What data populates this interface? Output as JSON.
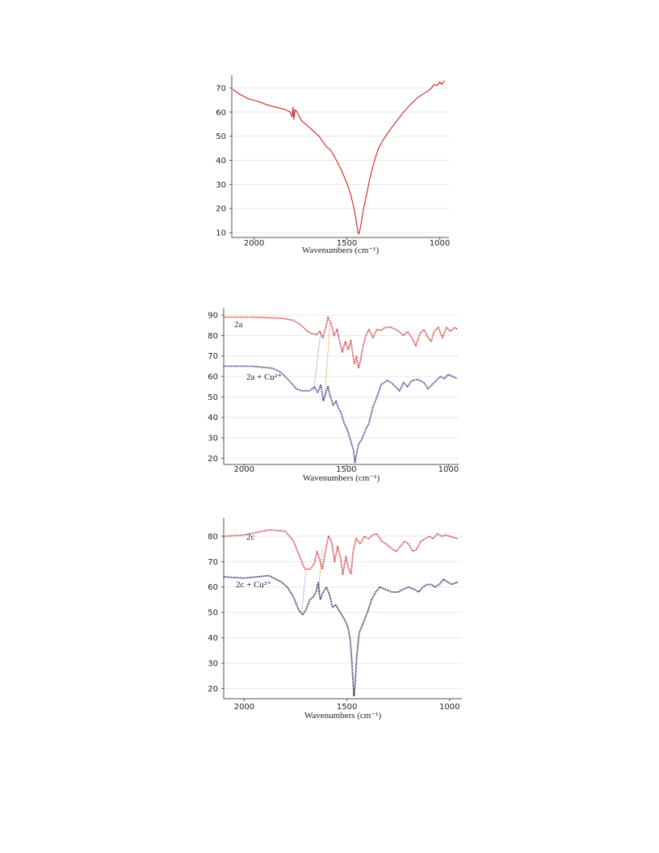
{
  "chart_data": [
    {
      "type": "line",
      "xlabel": "Wavenumbers (cm⁻¹)",
      "ylabel": "",
      "xlim": [
        2120,
        950
      ],
      "ylim": [
        8,
        74
      ],
      "xticks": [
        2000,
        1500,
        1000
      ],
      "yticks": [
        10,
        20,
        30,
        40,
        50,
        60,
        70
      ],
      "grid": true,
      "series": [
        {
          "color": "#cc2222",
          "points": [
            [
              2115,
              69.5
            ],
            [
              2080,
              67.5
            ],
            [
              2030,
              65.5
            ],
            [
              1980,
              64.5
            ],
            [
              1930,
              63
            ],
            [
              1880,
              62
            ],
            [
              1830,
              61
            ],
            [
              1805,
              60
            ],
            [
              1795,
              58
            ],
            [
              1790,
              62
            ],
            [
              1786,
              57
            ],
            [
              1780,
              61
            ],
            [
              1768,
              60
            ],
            [
              1745,
              56.5
            ],
            [
              1715,
              54.5
            ],
            [
              1685,
              52.5
            ],
            [
              1650,
              50
            ],
            [
              1610,
              45.5
            ],
            [
              1590,
              44.5
            ],
            [
              1560,
              40.5
            ],
            [
              1530,
              36
            ],
            [
              1500,
              30.5
            ],
            [
              1480,
              26
            ],
            [
              1460,
              19.5
            ],
            [
              1448,
              14
            ],
            [
              1440,
              10
            ],
            [
              1435,
              9.5
            ],
            [
              1425,
              13
            ],
            [
              1410,
              20
            ],
            [
              1395,
              25.5
            ],
            [
              1375,
              33
            ],
            [
              1355,
              39
            ],
            [
              1330,
              45
            ],
            [
              1300,
              49
            ],
            [
              1265,
              53
            ],
            [
              1235,
              56
            ],
            [
              1200,
              59.5
            ],
            [
              1160,
              63
            ],
            [
              1120,
              66
            ],
            [
              1080,
              68
            ],
            [
              1050,
              69.5
            ],
            [
              1030,
              71.5
            ],
            [
              1015,
              71
            ],
            [
              1000,
              72.5
            ],
            [
              990,
              71.5
            ],
            [
              975,
              73
            ]
          ]
        }
      ]
    },
    {
      "type": "line",
      "xlabel": "Wavenumbers (cm⁻¹)",
      "ylabel": "",
      "xlim": [
        2100,
        950
      ],
      "ylim": [
        17,
        92
      ],
      "xticks": [
        2000,
        1500,
        1000
      ],
      "yticks": [
        20,
        30,
        40,
        50,
        60,
        70,
        80,
        90
      ],
      "grid": true,
      "series": [
        {
          "name": "2a",
          "color": "#cc3333",
          "points": [
            [
              2100,
              89
            ],
            [
              1960,
              89
            ],
            [
              1820,
              88.5
            ],
            [
              1760,
              87.5
            ],
            [
              1720,
              85
            ],
            [
              1690,
              82
            ],
            [
              1670,
              81
            ],
            [
              1645,
              80.5
            ],
            [
              1630,
              82
            ],
            [
              1615,
              79
            ],
            [
              1600,
              84
            ],
            [
              1590,
              89
            ],
            [
              1575,
              86
            ],
            [
              1560,
              80
            ],
            [
              1545,
              83
            ],
            [
              1530,
              76
            ],
            [
              1520,
              72
            ],
            [
              1505,
              77
            ],
            [
              1490,
              73
            ],
            [
              1478,
              78
            ],
            [
              1470,
              72
            ],
            [
              1460,
              66
            ],
            [
              1450,
              70
            ],
            [
              1440,
              64
            ],
            [
              1430,
              68
            ],
            [
              1420,
              74
            ],
            [
              1405,
              80
            ],
            [
              1390,
              83
            ],
            [
              1370,
              79
            ],
            [
              1350,
              83
            ],
            [
              1330,
              82.5
            ],
            [
              1310,
              84
            ],
            [
              1280,
              84
            ],
            [
              1250,
              82.5
            ],
            [
              1220,
              80
            ],
            [
              1200,
              82
            ],
            [
              1180,
              79
            ],
            [
              1160,
              75
            ],
            [
              1140,
              81
            ],
            [
              1120,
              83
            ],
            [
              1100,
              79
            ],
            [
              1085,
              77
            ],
            [
              1070,
              82
            ],
            [
              1050,
              84
            ],
            [
              1030,
              79
            ],
            [
              1010,
              84
            ],
            [
              990,
              82
            ],
            [
              970,
              84
            ],
            [
              955,
              83
            ]
          ]
        },
        {
          "name": "2a + Cu²⁺",
          "color": "#2a2a80",
          "points": [
            [
              2100,
              65
            ],
            [
              1960,
              65
            ],
            [
              1860,
              64
            ],
            [
              1820,
              62
            ],
            [
              1780,
              58
            ],
            [
              1745,
              54
            ],
            [
              1720,
              53
            ],
            [
              1680,
              53
            ],
            [
              1655,
              55
            ],
            [
              1640,
              52
            ],
            [
              1625,
              56
            ],
            [
              1612,
              48
            ],
            [
              1600,
              52
            ],
            [
              1590,
              55
            ],
            [
              1580,
              51
            ],
            [
              1565,
              46
            ],
            [
              1550,
              48
            ],
            [
              1540,
              45
            ],
            [
              1525,
              42
            ],
            [
              1510,
              37
            ],
            [
              1495,
              34
            ],
            [
              1480,
              29
            ],
            [
              1465,
              24
            ],
            [
              1458,
              18
            ],
            [
              1450,
              22
            ],
            [
              1440,
              27
            ],
            [
              1425,
              29
            ],
            [
              1410,
              33
            ],
            [
              1390,
              37
            ],
            [
              1370,
              45
            ],
            [
              1350,
              50
            ],
            [
              1330,
              56
            ],
            [
              1300,
              58
            ],
            [
              1280,
              57
            ],
            [
              1260,
              55
            ],
            [
              1240,
              53
            ],
            [
              1220,
              57
            ],
            [
              1200,
              55
            ],
            [
              1180,
              58
            ],
            [
              1150,
              58.5
            ],
            [
              1120,
              57
            ],
            [
              1100,
              54
            ],
            [
              1080,
              56
            ],
            [
              1060,
              58
            ],
            [
              1040,
              60
            ],
            [
              1020,
              59
            ],
            [
              1000,
              61
            ],
            [
              980,
              60
            ],
            [
              958,
              59
            ]
          ]
        }
      ],
      "annotations": [
        "2a",
        "2a + Cu²⁺"
      ]
    },
    {
      "type": "line",
      "xlabel": "Wavenumbers (cm⁻¹)",
      "ylabel": "",
      "xlim": [
        2100,
        940
      ],
      "ylim": [
        16,
        86
      ],
      "xticks": [
        2000,
        1500,
        1000
      ],
      "yticks": [
        20,
        30,
        40,
        50,
        60,
        70,
        80
      ],
      "grid": true,
      "series": [
        {
          "name": "2c",
          "color": "#cc3333",
          "points": [
            [
              2100,
              80
            ],
            [
              2000,
              80.5
            ],
            [
              1880,
              82.5
            ],
            [
              1800,
              82
            ],
            [
              1760,
              78
            ],
            [
              1730,
              72
            ],
            [
              1705,
              67
            ],
            [
              1680,
              67
            ],
            [
              1660,
              69
            ],
            [
              1645,
              74
            ],
            [
              1630,
              70
            ],
            [
              1620,
              67
            ],
            [
              1605,
              74
            ],
            [
              1590,
              80
            ],
            [
              1575,
              78
            ],
            [
              1560,
              70
            ],
            [
              1545,
              76
            ],
            [
              1530,
              71
            ],
            [
              1520,
              65
            ],
            [
              1505,
              72
            ],
            [
              1495,
              68
            ],
            [
              1480,
              65
            ],
            [
              1470,
              74
            ],
            [
              1455,
              79
            ],
            [
              1435,
              77
            ],
            [
              1415,
              80
            ],
            [
              1395,
              79
            ],
            [
              1375,
              80.5
            ],
            [
              1355,
              81
            ],
            [
              1330,
              78
            ],
            [
              1310,
              77
            ],
            [
              1280,
              75
            ],
            [
              1260,
              74
            ],
            [
              1240,
              76
            ],
            [
              1220,
              78
            ],
            [
              1200,
              77
            ],
            [
              1180,
              74
            ],
            [
              1160,
              75
            ],
            [
              1140,
              78
            ],
            [
              1120,
              79
            ],
            [
              1100,
              80
            ],
            [
              1080,
              79
            ],
            [
              1060,
              81
            ],
            [
              1040,
              80
            ],
            [
              1020,
              80.5
            ],
            [
              1000,
              80
            ],
            [
              960,
              79
            ]
          ]
        },
        {
          "name": "2c + Cu²⁺",
          "color": "#1a1a50",
          "points": [
            [
              2100,
              64
            ],
            [
              2000,
              63.5
            ],
            [
              1880,
              64.5
            ],
            [
              1820,
              62
            ],
            [
              1790,
              60
            ],
            [
              1760,
              56
            ],
            [
              1735,
              51
            ],
            [
              1715,
              49
            ],
            [
              1700,
              51
            ],
            [
              1680,
              55
            ],
            [
              1665,
              56
            ],
            [
              1650,
              58
            ],
            [
              1640,
              62
            ],
            [
              1630,
              55
            ],
            [
              1615,
              58
            ],
            [
              1600,
              60
            ],
            [
              1585,
              57
            ],
            [
              1570,
              52
            ],
            [
              1555,
              53
            ],
            [
              1540,
              51
            ],
            [
              1525,
              49
            ],
            [
              1510,
              47
            ],
            [
              1495,
              44
            ],
            [
              1485,
              40
            ],
            [
              1478,
              33
            ],
            [
              1472,
              25
            ],
            [
              1466,
              17
            ],
            [
              1460,
              22
            ],
            [
              1452,
              33
            ],
            [
              1440,
              42
            ],
            [
              1420,
              46
            ],
            [
              1400,
              50
            ],
            [
              1380,
              55
            ],
            [
              1360,
              58
            ],
            [
              1340,
              60
            ],
            [
              1310,
              59
            ],
            [
              1280,
              58
            ],
            [
              1250,
              58
            ],
            [
              1230,
              59
            ],
            [
              1200,
              60
            ],
            [
              1170,
              59
            ],
            [
              1150,
              58
            ],
            [
              1130,
              60
            ],
            [
              1110,
              61
            ],
            [
              1090,
              61
            ],
            [
              1070,
              60
            ],
            [
              1050,
              61
            ],
            [
              1030,
              63
            ],
            [
              1010,
              62
            ],
            [
              990,
              61
            ],
            [
              960,
              62
            ]
          ]
        }
      ],
      "annotations": [
        "2c",
        "2c + Cu²⁺"
      ]
    }
  ]
}
